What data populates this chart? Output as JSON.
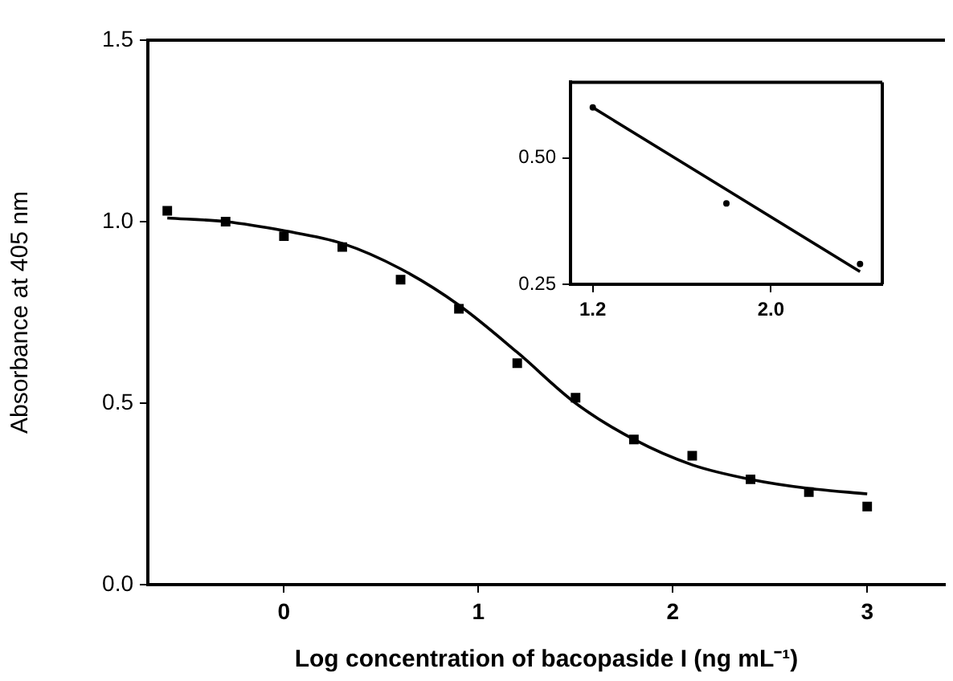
{
  "chart_data": [
    {
      "type": "scatter",
      "xlabel": "Log concentration of bacopaside I (ng mL⁻¹)",
      "ylabel": "Absorbance at 405 nm",
      "xlim": [
        -0.7,
        3.4
      ],
      "ylim": [
        0,
        1.5
      ],
      "xticks": [
        0,
        1,
        2,
        3
      ],
      "yticks": [
        {
          "value": 0,
          "label": "0.0"
        },
        {
          "value": 0.5,
          "label": "0.5"
        },
        {
          "value": 1,
          "label": "1.0"
        },
        {
          "value": 1.5,
          "label": "1.5"
        }
      ],
      "series": [
        {
          "color": "#000000",
          "marker": "square",
          "x": [
            -0.6,
            -0.3,
            0,
            0.3,
            0.6,
            0.9,
            1.2,
            1.5,
            1.8,
            2.1,
            2.4,
            2.7,
            3.0
          ],
          "values": [
            1.03,
            1.0,
            0.96,
            0.93,
            0.84,
            0.76,
            0.61,
            0.515,
            0.4,
            0.355,
            0.29,
            0.255,
            0.215
          ]
        },
        {
          "type": "line",
          "color": "#000000",
          "marker": "none",
          "line_style": "solid",
          "x": [
            -0.6,
            -0.3,
            0,
            0.3,
            0.6,
            0.9,
            1.2,
            1.5,
            1.8,
            2.1,
            2.4,
            2.7,
            3.0
          ],
          "values": [
            1.01,
            1.0,
            0.975,
            0.94,
            0.87,
            0.77,
            0.64,
            0.5,
            0.4,
            0.33,
            0.29,
            0.265,
            0.25
          ]
        }
      ]
    },
    {
      "type": "scatter",
      "xlim": [
        1.1,
        2.5
      ],
      "ylim": [
        0.25,
        0.65
      ],
      "xticks": [
        1.2,
        {
          "value": 2,
          "label": "2.0"
        }
      ],
      "yticks": [
        0.25,
        {
          "value": 0.5,
          "label": "0.50"
        }
      ],
      "series": [
        {
          "color": "#000000",
          "marker": "circle",
          "x": [
            1.2,
            1.8,
            2.4
          ],
          "values": [
            0.6,
            0.41,
            0.29
          ]
        },
        {
          "type": "line",
          "color": "#000000",
          "marker": "none",
          "line_style": "solid",
          "x": [
            1.2,
            2.4
          ],
          "values": [
            0.6,
            0.275
          ]
        }
      ]
    }
  ]
}
